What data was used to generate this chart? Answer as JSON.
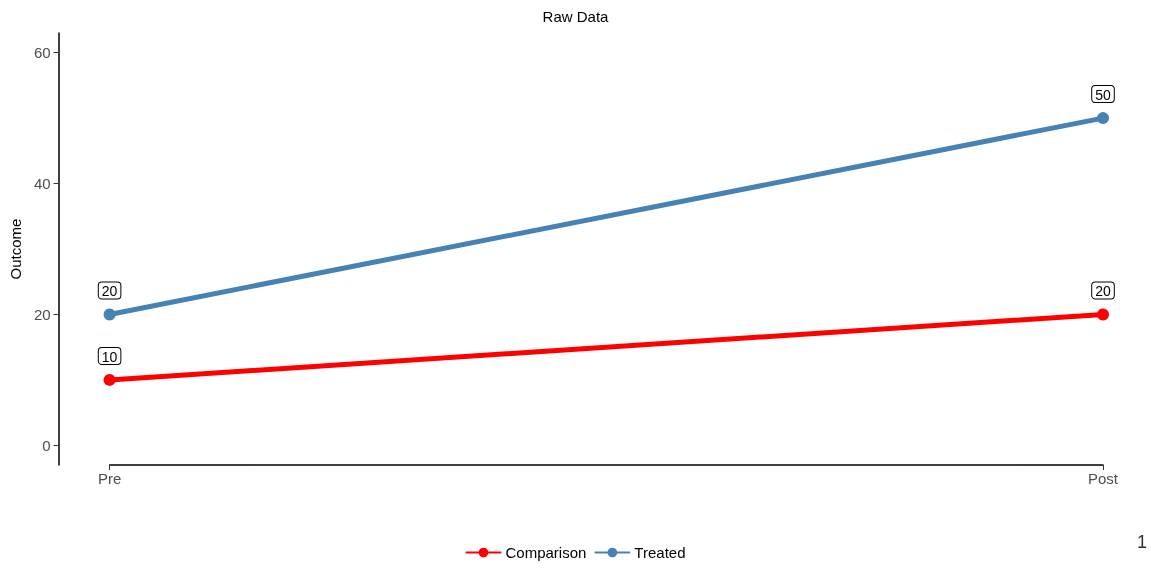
{
  "chart_data": {
    "type": "line",
    "title": "Raw Data",
    "ylabel": "Outcome",
    "categories": [
      "Pre",
      "Post"
    ],
    "series": [
      {
        "name": "Comparison",
        "color": "#ff0000",
        "values": [
          10,
          20
        ]
      },
      {
        "name": "Treated",
        "color": "#4682b4",
        "values": [
          20,
          50
        ]
      }
    ],
    "ylim": [
      -3,
      63
    ],
    "yticks": [
      0,
      20,
      40,
      60
    ],
    "grid": false,
    "legend": "bottom",
    "marker": "circle",
    "line_style": "solid",
    "data_labels": true,
    "annotations": [
      "1"
    ]
  }
}
